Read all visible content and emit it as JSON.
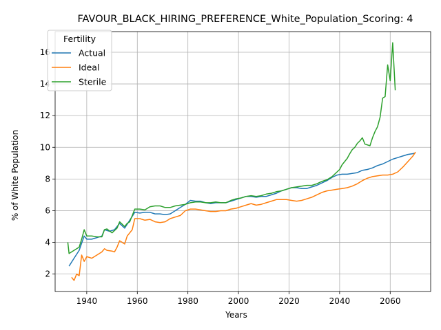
{
  "chart_data": {
    "type": "line",
    "title": "FAVOUR_BLACK_HIRING_PREFERENCE_White_Population_Scoring: 4",
    "xlabel": "Years",
    "ylabel": "% of White Population",
    "xlim": [
      1927.5,
      2076
    ],
    "ylim": [
      0.9,
      17.3
    ],
    "xticks": [
      1940,
      1960,
      1980,
      2000,
      2020,
      2040,
      2060
    ],
    "yticks": [
      2,
      4,
      6,
      8,
      10,
      12,
      14,
      16
    ],
    "grid": true,
    "legend": {
      "title": "Fertility",
      "placement": "top-left"
    },
    "series": [
      {
        "name": "Actual",
        "color": "#1f77b4",
        "points": [
          [
            1933,
            2.5
          ],
          [
            1935,
            3.0
          ],
          [
            1937,
            3.5
          ],
          [
            1939,
            4.4
          ],
          [
            1940,
            4.2
          ],
          [
            1942,
            4.2
          ],
          [
            1944,
            4.3
          ],
          [
            1946,
            4.4
          ],
          [
            1947,
            4.8
          ],
          [
            1949,
            4.7
          ],
          [
            1951,
            4.8
          ],
          [
            1953,
            5.2
          ],
          [
            1955,
            4.9
          ],
          [
            1957,
            5.4
          ],
          [
            1959,
            5.9
          ],
          [
            1961,
            5.85
          ],
          [
            1963,
            5.9
          ],
          [
            1965,
            5.9
          ],
          [
            1967,
            5.8
          ],
          [
            1969,
            5.8
          ],
          [
            1971,
            5.75
          ],
          [
            1973,
            5.8
          ],
          [
            1975,
            6.0
          ],
          [
            1977,
            6.2
          ],
          [
            1979,
            6.4
          ],
          [
            1981,
            6.65
          ],
          [
            1983,
            6.6
          ],
          [
            1985,
            6.6
          ],
          [
            1987,
            6.5
          ],
          [
            1989,
            6.45
          ],
          [
            1991,
            6.5
          ],
          [
            1993,
            6.5
          ],
          [
            1995,
            6.5
          ],
          [
            1997,
            6.6
          ],
          [
            1999,
            6.7
          ],
          [
            2001,
            6.8
          ],
          [
            2003,
            6.9
          ],
          [
            2005,
            6.9
          ],
          [
            2007,
            6.85
          ],
          [
            2009,
            6.9
          ],
          [
            2011,
            6.9
          ],
          [
            2013,
            7.0
          ],
          [
            2015,
            7.1
          ],
          [
            2017,
            7.25
          ],
          [
            2019,
            7.35
          ],
          [
            2021,
            7.45
          ],
          [
            2023,
            7.45
          ],
          [
            2025,
            7.4
          ],
          [
            2027,
            7.4
          ],
          [
            2029,
            7.5
          ],
          [
            2031,
            7.6
          ],
          [
            2033,
            7.75
          ],
          [
            2035,
            7.9
          ],
          [
            2037,
            8.1
          ],
          [
            2039,
            8.25
          ],
          [
            2041,
            8.3
          ],
          [
            2043,
            8.3
          ],
          [
            2045,
            8.35
          ],
          [
            2047,
            8.4
          ],
          [
            2049,
            8.55
          ],
          [
            2051,
            8.6
          ],
          [
            2053,
            8.7
          ],
          [
            2055,
            8.85
          ],
          [
            2057,
            8.95
          ],
          [
            2059,
            9.1
          ],
          [
            2061,
            9.25
          ],
          [
            2063,
            9.35
          ],
          [
            2065,
            9.45
          ],
          [
            2067,
            9.55
          ],
          [
            2069,
            9.6
          ],
          [
            2070,
            9.65
          ]
        ]
      },
      {
        "name": "Ideal",
        "color": "#ff7f0e",
        "points": [
          [
            1934,
            1.8
          ],
          [
            1935,
            1.6
          ],
          [
            1936,
            2.0
          ],
          [
            1937,
            1.9
          ],
          [
            1938,
            3.2
          ],
          [
            1939,
            2.8
          ],
          [
            1940,
            3.1
          ],
          [
            1942,
            3.0
          ],
          [
            1944,
            3.2
          ],
          [
            1946,
            3.4
          ],
          [
            1947,
            3.6
          ],
          [
            1948,
            3.5
          ],
          [
            1950,
            3.45
          ],
          [
            1951,
            3.4
          ],
          [
            1952,
            3.7
          ],
          [
            1953,
            4.1
          ],
          [
            1954,
            4.0
          ],
          [
            1955,
            3.9
          ],
          [
            1956,
            4.4
          ],
          [
            1958,
            4.8
          ],
          [
            1959,
            5.5
          ],
          [
            1961,
            5.5
          ],
          [
            1963,
            5.4
          ],
          [
            1965,
            5.45
          ],
          [
            1967,
            5.3
          ],
          [
            1969,
            5.25
          ],
          [
            1971,
            5.3
          ],
          [
            1973,
            5.5
          ],
          [
            1975,
            5.6
          ],
          [
            1977,
            5.7
          ],
          [
            1979,
            6.0
          ],
          [
            1981,
            6.1
          ],
          [
            1983,
            6.1
          ],
          [
            1985,
            6.05
          ],
          [
            1987,
            6.0
          ],
          [
            1989,
            5.95
          ],
          [
            1991,
            5.95
          ],
          [
            1993,
            6.0
          ],
          [
            1995,
            6.0
          ],
          [
            1997,
            6.1
          ],
          [
            1999,
            6.15
          ],
          [
            2001,
            6.25
          ],
          [
            2003,
            6.35
          ],
          [
            2005,
            6.45
          ],
          [
            2007,
            6.35
          ],
          [
            2009,
            6.4
          ],
          [
            2011,
            6.5
          ],
          [
            2013,
            6.6
          ],
          [
            2015,
            6.7
          ],
          [
            2017,
            6.7
          ],
          [
            2019,
            6.7
          ],
          [
            2021,
            6.65
          ],
          [
            2023,
            6.6
          ],
          [
            2025,
            6.65
          ],
          [
            2027,
            6.75
          ],
          [
            2029,
            6.85
          ],
          [
            2031,
            7.0
          ],
          [
            2033,
            7.15
          ],
          [
            2035,
            7.25
          ],
          [
            2037,
            7.3
          ],
          [
            2039,
            7.35
          ],
          [
            2041,
            7.4
          ],
          [
            2043,
            7.45
          ],
          [
            2045,
            7.55
          ],
          [
            2047,
            7.7
          ],
          [
            2049,
            7.9
          ],
          [
            2051,
            8.05
          ],
          [
            2053,
            8.15
          ],
          [
            2055,
            8.2
          ],
          [
            2057,
            8.25
          ],
          [
            2059,
            8.25
          ],
          [
            2061,
            8.3
          ],
          [
            2063,
            8.45
          ],
          [
            2065,
            8.75
          ],
          [
            2067,
            9.1
          ],
          [
            2069,
            9.45
          ],
          [
            2070,
            9.7
          ]
        ]
      },
      {
        "name": "Sterile",
        "color": "#2ca02c",
        "points": [
          [
            1932.5,
            4.0
          ],
          [
            1933,
            3.3
          ],
          [
            1935,
            3.5
          ],
          [
            1937,
            3.7
          ],
          [
            1938,
            4.2
          ],
          [
            1939,
            4.8
          ],
          [
            1940,
            4.4
          ],
          [
            1942,
            4.4
          ],
          [
            1944,
            4.35
          ],
          [
            1946,
            4.35
          ],
          [
            1947,
            4.8
          ],
          [
            1948,
            4.85
          ],
          [
            1950,
            4.6
          ],
          [
            1952,
            4.9
          ],
          [
            1953,
            5.3
          ],
          [
            1955,
            5.0
          ],
          [
            1956,
            5.2
          ],
          [
            1957,
            5.3
          ],
          [
            1959,
            6.1
          ],
          [
            1961,
            6.1
          ],
          [
            1963,
            6.05
          ],
          [
            1965,
            6.25
          ],
          [
            1967,
            6.3
          ],
          [
            1969,
            6.3
          ],
          [
            1971,
            6.2
          ],
          [
            1973,
            6.2
          ],
          [
            1975,
            6.3
          ],
          [
            1977,
            6.35
          ],
          [
            1979,
            6.4
          ],
          [
            1981,
            6.5
          ],
          [
            1983,
            6.55
          ],
          [
            1985,
            6.55
          ],
          [
            1987,
            6.5
          ],
          [
            1989,
            6.5
          ],
          [
            1991,
            6.55
          ],
          [
            1993,
            6.5
          ],
          [
            1995,
            6.5
          ],
          [
            1997,
            6.65
          ],
          [
            1999,
            6.75
          ],
          [
            2001,
            6.8
          ],
          [
            2003,
            6.9
          ],
          [
            2005,
            6.95
          ],
          [
            2007,
            6.9
          ],
          [
            2009,
            6.95
          ],
          [
            2011,
            7.05
          ],
          [
            2013,
            7.1
          ],
          [
            2015,
            7.2
          ],
          [
            2017,
            7.25
          ],
          [
            2019,
            7.35
          ],
          [
            2021,
            7.45
          ],
          [
            2023,
            7.5
          ],
          [
            2025,
            7.55
          ],
          [
            2027,
            7.6
          ],
          [
            2029,
            7.6
          ],
          [
            2031,
            7.7
          ],
          [
            2033,
            7.85
          ],
          [
            2035,
            7.95
          ],
          [
            2037,
            8.15
          ],
          [
            2039,
            8.45
          ],
          [
            2040,
            8.6
          ],
          [
            2041,
            8.9
          ],
          [
            2043,
            9.3
          ],
          [
            2044,
            9.6
          ],
          [
            2045,
            9.85
          ],
          [
            2046,
            10.0
          ],
          [
            2047,
            10.25
          ],
          [
            2048,
            10.4
          ],
          [
            2049,
            10.6
          ],
          [
            2050,
            10.2
          ],
          [
            2052,
            10.1
          ],
          [
            2053,
            10.6
          ],
          [
            2054,
            11.0
          ],
          [
            2055,
            11.3
          ],
          [
            2056,
            11.9
          ],
          [
            2057,
            13.1
          ],
          [
            2058,
            13.2
          ],
          [
            2059,
            15.2
          ],
          [
            2060,
            14.2
          ],
          [
            2061,
            16.6
          ],
          [
            2062,
            13.6
          ]
        ]
      }
    ]
  }
}
